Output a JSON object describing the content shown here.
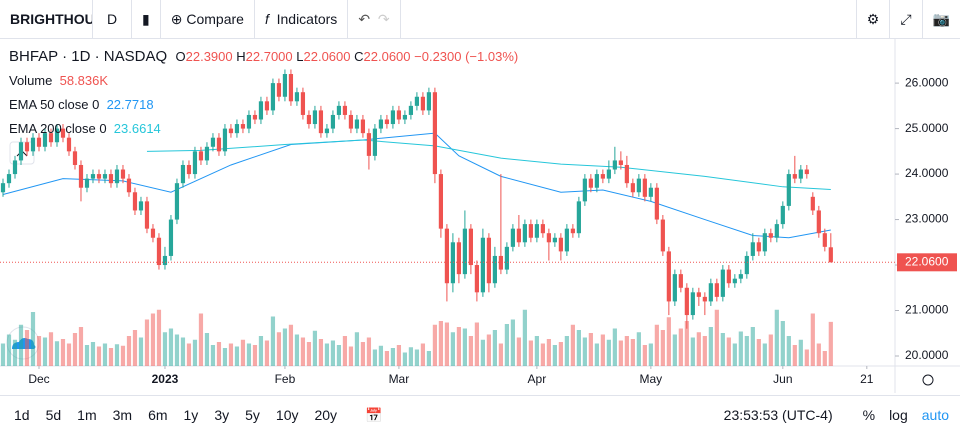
{
  "toolbar": {
    "symbol": "BRIGHTHOU",
    "interval": "D",
    "compare": "Compare",
    "indicators": "Indicators"
  },
  "bottom_bar": {
    "ranges": [
      "1d",
      "5d",
      "1m",
      "3m",
      "6m",
      "1y",
      "3y",
      "5y",
      "10y",
      "20y"
    ],
    "clock": "23:53:53 (UTC-4)",
    "percent": "%",
    "log": "log",
    "auto": "auto"
  },
  "legend": {
    "symbol": "BHFAP",
    "interval": "1D",
    "exchange": "NASDAQ",
    "o_label": "O",
    "o": "22.3900",
    "h_label": "H",
    "h": "22.7000",
    "l_label": "L",
    "l": "22.0600",
    "c_label": "C",
    "c": "22.0600",
    "change": "−0.2300 (−1.03%)",
    "volume_label": "Volume",
    "volume": "58.836K",
    "ema50_label": "EMA 50 close 0",
    "ema50": "22.7718",
    "ema200_label": "EMA 200 close 0",
    "ema200": "23.6614"
  },
  "chart_data": {
    "type": "candlestick",
    "up_color": "#26a69a",
    "down_color": "#ef5350",
    "xlim": [
      -0.5,
      148.7
    ],
    "ylim": [
      19.78,
      26.97
    ],
    "vlim": [
      0,
      100000
    ],
    "xticks": [
      {
        "value": 6,
        "label": "Dec"
      },
      {
        "value": 27,
        "label": "2023"
      },
      {
        "value": 47,
        "label": "Feb"
      },
      {
        "value": 66,
        "label": "Mar"
      },
      {
        "value": 89,
        "label": "Apr"
      },
      {
        "value": 108,
        "label": "May"
      },
      {
        "value": 130,
        "label": "Jun"
      },
      {
        "value": 144,
        "label": "21"
      }
    ],
    "yticks": [
      {
        "value": 26,
        "label": "26.0000"
      },
      {
        "value": 25,
        "label": "25.0000"
      },
      {
        "value": 24,
        "label": "24.0000"
      },
      {
        "value": 23,
        "label": "23.0000"
      },
      {
        "value": 22,
        "label": "22.0000"
      },
      {
        "value": 21,
        "label": "21.0000"
      },
      {
        "value": 20,
        "label": "20.0000"
      }
    ],
    "last_price_label": "22.0600",
    "ohlc": [
      [
        23.6,
        23.9,
        23.5,
        23.8
      ],
      [
        23.8,
        24.1,
        23.7,
        24.0
      ],
      [
        24.0,
        24.4,
        23.9,
        24.3
      ],
      [
        24.3,
        24.8,
        24.2,
        24.7
      ],
      [
        24.7,
        24.8,
        24.4,
        24.5
      ],
      [
        24.5,
        24.9,
        24.4,
        24.8
      ],
      [
        24.8,
        24.9,
        24.5,
        24.6
      ],
      [
        24.6,
        25.0,
        24.5,
        24.9
      ],
      [
        24.9,
        25.0,
        24.6,
        24.7
      ],
      [
        24.7,
        25.1,
        24.6,
        25.0
      ],
      [
        25.0,
        25.1,
        24.7,
        24.8
      ],
      [
        24.8,
        24.9,
        24.4,
        24.5
      ],
      [
        24.5,
        24.6,
        24.1,
        24.2
      ],
      [
        24.2,
        24.3,
        23.4,
        23.7
      ],
      [
        23.7,
        24.0,
        23.6,
        23.9
      ],
      [
        23.9,
        24.1,
        23.8,
        24.0
      ],
      [
        24.0,
        24.1,
        23.8,
        23.9
      ],
      [
        23.9,
        24.1,
        23.8,
        24.0
      ],
      [
        24.0,
        24.1,
        23.7,
        23.8
      ],
      [
        23.8,
        24.2,
        23.7,
        24.1
      ],
      [
        24.1,
        24.2,
        23.8,
        23.9
      ],
      [
        23.9,
        24.0,
        23.5,
        23.6
      ],
      [
        23.6,
        23.7,
        23.1,
        23.2
      ],
      [
        23.2,
        23.5,
        23.1,
        23.4
      ],
      [
        23.4,
        23.5,
        22.7,
        22.8
      ],
      [
        22.8,
        22.9,
        22.5,
        22.6
      ],
      [
        22.6,
        22.7,
        21.9,
        22.0
      ],
      [
        22.0,
        22.4,
        21.9,
        22.2
      ],
      [
        22.2,
        23.1,
        22.1,
        23.0
      ],
      [
        23.0,
        23.9,
        22.9,
        23.8
      ],
      [
        23.8,
        24.3,
        23.7,
        24.2
      ],
      [
        24.2,
        24.3,
        23.9,
        24.0
      ],
      [
        24.0,
        24.6,
        23.9,
        24.5
      ],
      [
        24.5,
        24.6,
        24.2,
        24.3
      ],
      [
        24.3,
        24.7,
        24.2,
        24.6
      ],
      [
        24.6,
        24.9,
        24.5,
        24.8
      ],
      [
        24.8,
        24.9,
        24.4,
        24.5
      ],
      [
        24.5,
        25.1,
        24.4,
        25.0
      ],
      [
        25.0,
        25.1,
        24.8,
        24.9
      ],
      [
        24.9,
        25.2,
        24.8,
        25.1
      ],
      [
        25.1,
        25.2,
        24.9,
        25.0
      ],
      [
        25.0,
        25.4,
        24.9,
        25.3
      ],
      [
        25.3,
        25.4,
        25.1,
        25.2
      ],
      [
        25.2,
        25.7,
        25.1,
        25.6
      ],
      [
        25.6,
        25.7,
        25.3,
        25.4
      ],
      [
        25.4,
        26.1,
        25.3,
        26.0
      ],
      [
        26.0,
        26.1,
        25.6,
        25.7
      ],
      [
        25.7,
        26.3,
        25.6,
        26.2
      ],
      [
        26.2,
        26.3,
        25.5,
        25.6
      ],
      [
        25.6,
        25.9,
        25.5,
        25.8
      ],
      [
        25.8,
        25.9,
        25.2,
        25.3
      ],
      [
        25.3,
        25.4,
        25.0,
        25.1
      ],
      [
        25.1,
        25.5,
        25.0,
        25.4
      ],
      [
        25.4,
        25.5,
        24.8,
        24.9
      ],
      [
        24.9,
        25.1,
        24.8,
        25.0
      ],
      [
        25.0,
        25.4,
        24.9,
        25.3
      ],
      [
        25.3,
        25.6,
        25.2,
        25.5
      ],
      [
        25.5,
        25.6,
        25.2,
        25.3
      ],
      [
        25.3,
        25.4,
        24.9,
        25.0
      ],
      [
        25.0,
        25.3,
        24.9,
        25.2
      ],
      [
        25.2,
        25.3,
        24.8,
        24.9
      ],
      [
        24.9,
        25.0,
        24.1,
        24.4
      ],
      [
        24.4,
        25.1,
        24.3,
        25.0
      ],
      [
        25.0,
        25.3,
        24.9,
        25.2
      ],
      [
        25.2,
        25.3,
        25.0,
        25.1
      ],
      [
        25.1,
        25.5,
        25.0,
        25.4
      ],
      [
        25.4,
        25.5,
        25.1,
        25.2
      ],
      [
        25.2,
        25.4,
        25.1,
        25.3
      ],
      [
        25.3,
        25.6,
        25.2,
        25.5
      ],
      [
        25.5,
        25.8,
        25.4,
        25.7
      ],
      [
        25.7,
        25.8,
        25.3,
        25.4
      ],
      [
        25.4,
        25.9,
        25.3,
        25.8
      ],
      [
        25.8,
        25.9,
        23.8,
        24.0
      ],
      [
        24.0,
        24.1,
        22.6,
        22.8
      ],
      [
        22.8,
        22.9,
        21.2,
        21.6
      ],
      [
        21.6,
        22.7,
        21.4,
        22.5
      ],
      [
        22.5,
        22.6,
        21.6,
        21.8
      ],
      [
        21.8,
        23.2,
        21.7,
        22.8
      ],
      [
        22.8,
        22.9,
        21.8,
        22.0
      ],
      [
        22.0,
        22.1,
        21.2,
        21.4
      ],
      [
        21.4,
        22.8,
        21.3,
        22.6
      ],
      [
        22.6,
        22.7,
        21.4,
        21.6
      ],
      [
        21.6,
        22.4,
        21.5,
        22.2
      ],
      [
        22.2,
        24.0,
        21.8,
        21.9
      ],
      [
        21.9,
        22.5,
        21.8,
        22.4
      ],
      [
        22.4,
        22.9,
        22.3,
        22.8
      ],
      [
        22.8,
        23.1,
        22.4,
        22.5
      ],
      [
        22.5,
        23.0,
        22.4,
        22.9
      ],
      [
        22.9,
        23.0,
        22.5,
        22.6
      ],
      [
        22.6,
        23.0,
        22.5,
        22.9
      ],
      [
        22.9,
        23.0,
        22.6,
        22.7
      ],
      [
        22.7,
        22.8,
        22.1,
        22.5
      ],
      [
        22.5,
        22.7,
        22.4,
        22.6
      ],
      [
        22.6,
        22.7,
        22.1,
        22.3
      ],
      [
        22.3,
        22.9,
        22.2,
        22.8
      ],
      [
        22.8,
        22.9,
        22.6,
        22.7
      ],
      [
        22.7,
        23.5,
        22.6,
        23.4
      ],
      [
        23.4,
        24.0,
        23.3,
        23.9
      ],
      [
        23.9,
        24.0,
        23.6,
        23.7
      ],
      [
        23.7,
        24.1,
        23.6,
        24.0
      ],
      [
        24.0,
        24.1,
        23.8,
        23.9
      ],
      [
        23.9,
        24.3,
        23.8,
        24.1
      ],
      [
        24.1,
        24.6,
        24.0,
        24.3
      ],
      [
        24.3,
        24.5,
        24.1,
        24.2
      ],
      [
        24.2,
        24.4,
        23.7,
        23.8
      ],
      [
        23.8,
        23.9,
        23.5,
        23.6
      ],
      [
        23.6,
        24.0,
        23.5,
        23.9
      ],
      [
        23.9,
        24.0,
        23.4,
        23.5
      ],
      [
        23.5,
        23.8,
        23.4,
        23.7
      ],
      [
        23.7,
        23.8,
        22.9,
        23.0
      ],
      [
        23.0,
        23.1,
        22.2,
        22.3
      ],
      [
        22.3,
        22.4,
        20.9,
        21.2
      ],
      [
        21.2,
        21.9,
        21.1,
        21.8
      ],
      [
        21.8,
        21.9,
        21.4,
        21.5
      ],
      [
        21.5,
        21.6,
        20.6,
        20.9
      ],
      [
        20.9,
        21.5,
        20.8,
        21.4
      ],
      [
        21.4,
        21.5,
        21.1,
        21.3
      ],
      [
        21.3,
        21.4,
        20.9,
        21.2
      ],
      [
        21.2,
        21.7,
        21.1,
        21.6
      ],
      [
        21.6,
        21.7,
        21.2,
        21.3
      ],
      [
        21.3,
        22.0,
        21.2,
        21.9
      ],
      [
        21.9,
        22.0,
        21.5,
        21.6
      ],
      [
        21.6,
        21.8,
        21.5,
        21.7
      ],
      [
        21.7,
        21.9,
        21.6,
        21.8
      ],
      [
        21.8,
        22.3,
        21.7,
        22.2
      ],
      [
        22.2,
        22.7,
        22.1,
        22.5
      ],
      [
        22.5,
        22.6,
        22.2,
        22.3
      ],
      [
        22.3,
        22.8,
        22.2,
        22.7
      ],
      [
        22.7,
        22.8,
        22.5,
        22.6
      ],
      [
        22.6,
        23.0,
        22.5,
        22.9
      ],
      [
        22.9,
        23.4,
        22.8,
        23.3
      ],
      [
        23.3,
        24.1,
        23.2,
        24.0
      ],
      [
        24.0,
        24.4,
        23.8,
        23.9
      ],
      [
        23.9,
        24.2,
        23.8,
        24.1
      ],
      [
        24.1,
        24.2,
        23.9,
        24.0
      ],
      [
        23.5,
        23.6,
        23.1,
        23.2
      ],
      [
        23.2,
        23.3,
        22.6,
        22.7
      ],
      [
        22.7,
        22.8,
        22.3,
        22.4
      ],
      [
        22.39,
        22.7,
        22.06,
        22.06
      ]
    ],
    "volume": [
      30000,
      42000,
      35000,
      55000,
      48000,
      72000,
      40000,
      38000,
      45000,
      33000,
      36000,
      30000,
      44000,
      52000,
      28000,
      32000,
      26000,
      30000,
      24000,
      29000,
      27000,
      40000,
      48000,
      38000,
      62000,
      70000,
      75000,
      45000,
      50000,
      42000,
      38000,
      30000,
      35000,
      70000,
      44000,
      28000,
      32000,
      24000,
      30000,
      26000,
      35000,
      30000,
      28000,
      40000,
      34000,
      66000,
      45000,
      50000,
      55000,
      42000,
      38000,
      32000,
      47000,
      36000,
      30000,
      34000,
      28000,
      40000,
      26000,
      45000,
      32000,
      38000,
      22000,
      27000,
      20000,
      24000,
      28000,
      18000,
      25000,
      22000,
      30000,
      20000,
      55000,
      60000,
      58000,
      45000,
      52000,
      50000,
      40000,
      58000,
      35000,
      42000,
      48000,
      30000,
      56000,
      62000,
      38000,
      75000,
      34000,
      40000,
      30000,
      36000,
      28000,
      32000,
      40000,
      55000,
      48000,
      38000,
      44000,
      30000,
      42000,
      35000,
      50000,
      34000,
      40000,
      36000,
      45000,
      28000,
      30000,
      55000,
      48000,
      65000,
      42000,
      50000,
      60000,
      38000,
      45000,
      40000,
      52000,
      75000,
      44000,
      38000,
      30000,
      46000,
      40000,
      52000,
      36000,
      30000,
      42000,
      75000,
      60000,
      40000,
      28000,
      35000,
      22000,
      70000,
      30000,
      20000,
      58836
    ],
    "lines": [
      {
        "name": "EMA 50",
        "color": "#2196f3",
        "x": [
          0,
          10,
          20,
          28,
          38,
          48,
          60,
          72,
          76,
          83,
          93,
          100,
          108,
          117,
          125,
          131,
          138
        ],
        "values": [
          23.55,
          23.9,
          23.85,
          23.6,
          24.2,
          24.65,
          24.75,
          24.9,
          24.4,
          23.95,
          23.6,
          23.65,
          23.4,
          23.0,
          22.65,
          22.6,
          22.77
        ]
      },
      {
        "name": "EMA 200",
        "color": "#26c6da",
        "x": [
          24,
          33,
          47,
          60,
          72,
          83,
          93,
          103,
          117,
          130,
          138
        ],
        "values": [
          24.5,
          24.52,
          24.65,
          24.75,
          24.62,
          24.35,
          24.22,
          24.15,
          23.95,
          23.72,
          23.66
        ]
      }
    ]
  }
}
